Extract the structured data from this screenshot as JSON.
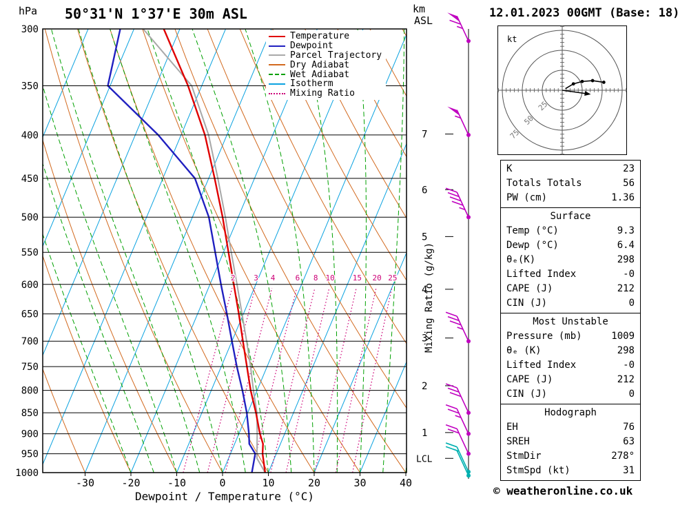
{
  "header": {
    "pressure_unit": "hPa",
    "title_left": "50°31'N 1°37'E 30m ASL",
    "title_right": "12.01.2023 00GMT (Base: 18)",
    "km_label": "km",
    "asl_label": "ASL"
  },
  "axes": {
    "x_title": "Dewpoint / Temperature (°C)",
    "mixing_ratio_label": "Mixing Ratio (g/kg)",
    "lcl_label": "LCL"
  },
  "footer": {
    "credit": "© weatheronline.co.uk"
  },
  "colors": {
    "temperature": "#e00000",
    "dewpoint": "#2020c0",
    "parcel": "#a8a8a8",
    "dry_adiabat": "#d2691e",
    "wet_adiabat": "#00a000",
    "isotherm": "#0aa2e0",
    "mixing_ratio": "#cc0077",
    "grid": "#000000",
    "wind_barb": "#c000c0",
    "wind_barb_surface": "#00b0b0"
  },
  "legend": {
    "items": [
      {
        "label": "Temperature",
        "color": "#e00000",
        "style": "solid"
      },
      {
        "label": "Dewpoint",
        "color": "#2020c0",
        "style": "solid"
      },
      {
        "label": "Parcel Trajectory",
        "color": "#a8a8a8",
        "style": "solid"
      },
      {
        "label": "Dry Adiabat",
        "color": "#d2691e",
        "style": "solid"
      },
      {
        "label": "Wet Adiabat",
        "color": "#00a000",
        "style": "dashed"
      },
      {
        "label": "Isotherm",
        "color": "#0aa2e0",
        "style": "solid"
      },
      {
        "label": "Mixing Ratio",
        "color": "#cc0077",
        "style": "dotted"
      }
    ]
  },
  "chart_data": {
    "type": "line",
    "subtype": "skew-t-log-p-sounding",
    "pressure_ticks": [
      300,
      350,
      400,
      450,
      500,
      550,
      600,
      650,
      700,
      750,
      800,
      850,
      900,
      950,
      1000
    ],
    "temp_ticks": [
      -30,
      -20,
      -10,
      0,
      10,
      20,
      30,
      40
    ],
    "pressure_range_hpa": [
      300,
      1000
    ],
    "isotherm_step_c": 10,
    "dry_adiabats_theta_c": {
      "min": -40,
      "max": 110,
      "step": 10
    },
    "wet_adiabats_thetaw_c": {
      "min": -20,
      "max": 40,
      "step": 5
    },
    "mixing_ratio_lines_gpkg": [
      2,
      3,
      4,
      6,
      8,
      10,
      15,
      20,
      25
    ],
    "km_ticks": [
      {
        "km": 7,
        "p": 399
      },
      {
        "km": 6,
        "p": 464
      },
      {
        "km": 5,
        "p": 527
      },
      {
        "km": 4,
        "p": 608
      },
      {
        "km": 3,
        "p": 694
      },
      {
        "km": 2,
        "p": 790
      },
      {
        "km": 1,
        "p": 897
      }
    ],
    "lcl_pressure": 962,
    "temperature_profile": [
      [
        1000,
        9.3
      ],
      [
        950,
        7.0
      ],
      [
        925,
        6.2
      ],
      [
        900,
        4.6
      ],
      [
        850,
        1.8
      ],
      [
        800,
        -1.4
      ],
      [
        750,
        -4.4
      ],
      [
        700,
        -7.6
      ],
      [
        650,
        -11.0
      ],
      [
        600,
        -14.8
      ],
      [
        550,
        -18.9
      ],
      [
        500,
        -23.4
      ],
      [
        450,
        -28.7
      ],
      [
        400,
        -34.8
      ],
      [
        350,
        -43.0
      ],
      [
        300,
        -53.5
      ]
    ],
    "dewpoint_profile": [
      [
        1000,
        6.4
      ],
      [
        950,
        5.4
      ],
      [
        925,
        3.2
      ],
      [
        900,
        2.2
      ],
      [
        850,
        -0.2
      ],
      [
        800,
        -3.2
      ],
      [
        750,
        -6.6
      ],
      [
        700,
        -10.0
      ],
      [
        650,
        -13.6
      ],
      [
        600,
        -17.6
      ],
      [
        550,
        -21.8
      ],
      [
        500,
        -26.4
      ],
      [
        450,
        -33.0
      ],
      [
        400,
        -45.0
      ],
      [
        350,
        -60.5
      ],
      [
        300,
        -63.0
      ]
    ],
    "parcel_profile": [
      [
        1000,
        9.3
      ],
      [
        962,
        6.2
      ],
      [
        900,
        4.0
      ],
      [
        850,
        2.0
      ],
      [
        800,
        -0.8
      ],
      [
        750,
        -3.6
      ],
      [
        700,
        -6.8
      ],
      [
        650,
        -10.3
      ],
      [
        600,
        -14.1
      ],
      [
        550,
        -18.3
      ],
      [
        500,
        -22.8
      ],
      [
        450,
        -28.0
      ],
      [
        400,
        -34.0
      ],
      [
        350,
        -42.2
      ],
      [
        300,
        -58.0
      ]
    ],
    "winds": [
      {
        "p": 310,
        "kt": 65
      },
      {
        "p": 400,
        "kt": 55
      },
      {
        "p": 500,
        "kt": 45
      },
      {
        "p": 700,
        "kt": 35
      },
      {
        "p": 850,
        "kt": 30
      },
      {
        "p": 900,
        "kt": 25
      },
      {
        "p": 950,
        "kt": 20
      },
      {
        "p": 998,
        "kt": 15,
        "surface": true
      },
      {
        "p": 1008,
        "kt": 12,
        "surface": true
      }
    ]
  },
  "hodograph": {
    "unit_label": "kt",
    "rings_kt": [
      25,
      50,
      75
    ],
    "trace_uv_kt": [
      [
        4,
        2
      ],
      [
        14,
        8
      ],
      [
        25,
        11
      ],
      [
        38,
        12
      ],
      [
        52,
        10
      ]
    ],
    "storm_motion": {
      "dir_deg": 278,
      "speed_kt": 31
    }
  },
  "table": {
    "sections": [
      {
        "rows": [
          {
            "label": "K",
            "value": "23"
          },
          {
            "label": "Totals Totals",
            "value": "56"
          },
          {
            "label": "PW (cm)",
            "value": "1.36"
          }
        ]
      },
      {
        "header": "Surface",
        "rows": [
          {
            "label": "Temp (°C)",
            "value": "9.3"
          },
          {
            "label": "Dewp (°C)",
            "value": "6.4"
          },
          {
            "label": "θₑ(K)",
            "value": "298"
          },
          {
            "label": "Lifted Index",
            "value": "-0"
          },
          {
            "label": "CAPE (J)",
            "value": "212"
          },
          {
            "label": "CIN (J)",
            "value": "0"
          }
        ]
      },
      {
        "header": "Most Unstable",
        "rows": [
          {
            "label": "Pressure (mb)",
            "value": "1009"
          },
          {
            "label": "θₑ (K)",
            "value": "298"
          },
          {
            "label": "Lifted Index",
            "value": "-0"
          },
          {
            "label": "CAPE (J)",
            "value": "212"
          },
          {
            "label": "CIN (J)",
            "value": "0"
          }
        ]
      },
      {
        "header": "Hodograph",
        "rows": [
          {
            "label": "EH",
            "value": "76"
          },
          {
            "label": "SREH",
            "value": "63"
          },
          {
            "label": "StmDir",
            "value": "278°"
          },
          {
            "label": "StmSpd (kt)",
            "value": "31"
          }
        ]
      }
    ]
  }
}
